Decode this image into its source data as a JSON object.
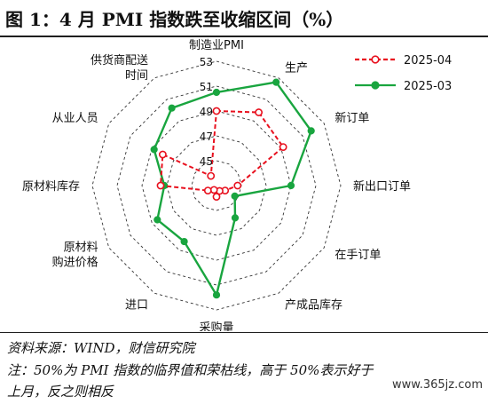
{
  "title": "图 1：4 月 PMI 指数跌至收缩区间（%）",
  "source": "资料来源：WIND，财信研究院",
  "note_line1": "注：50%为 PMI 指数的临界值和荣枯线，高于 50%表示好于",
  "note_line2": "上月，反之则相反",
  "watermark": "www.365jz.com",
  "chart_data": {
    "type": "radar",
    "title": "",
    "axes": [
      "制造业PMI",
      "生产",
      "新订单",
      "新出口订单",
      "在手订单",
      "产成品库存",
      "采购量",
      "进口",
      "原材料购进价格",
      "原材料库存",
      "从业人员",
      "供货商配送时间"
    ],
    "axis_label_lines": [
      [
        "制造业PMI"
      ],
      [
        "生产"
      ],
      [
        "新订单"
      ],
      [
        "新出口订单"
      ],
      [
        "在手订单"
      ],
      [
        "产成品库存"
      ],
      [
        "采购量"
      ],
      [
        "进口"
      ],
      [
        "原材料",
        "购进价格"
      ],
      [
        "原材料库存"
      ],
      [
        "从业人员"
      ],
      [
        "供货商配送",
        "时间"
      ]
    ],
    "tick_labels": [
      "45",
      "47",
      "49",
      "51",
      "53"
    ],
    "rlim": [
      43,
      53
    ],
    "grid": true,
    "legend_position": "top-right",
    "series": [
      {
        "name": "2025-04",
        "color": "#e8101e",
        "dashed": true,
        "values": [
          49.0,
          49.8,
          49.2,
          44.7,
          43.8,
          43.5,
          43.9,
          43.4,
          43.8,
          47.5,
          48.0,
          43.9
        ]
      },
      {
        "name": "2025-03",
        "color": "#19a53f",
        "dashed": false,
        "values": [
          50.5,
          52.6,
          51.8,
          49.0,
          44.7,
          46.0,
          51.8,
          48.2,
          48.5,
          47.2,
          48.8,
          50.2
        ]
      }
    ]
  }
}
